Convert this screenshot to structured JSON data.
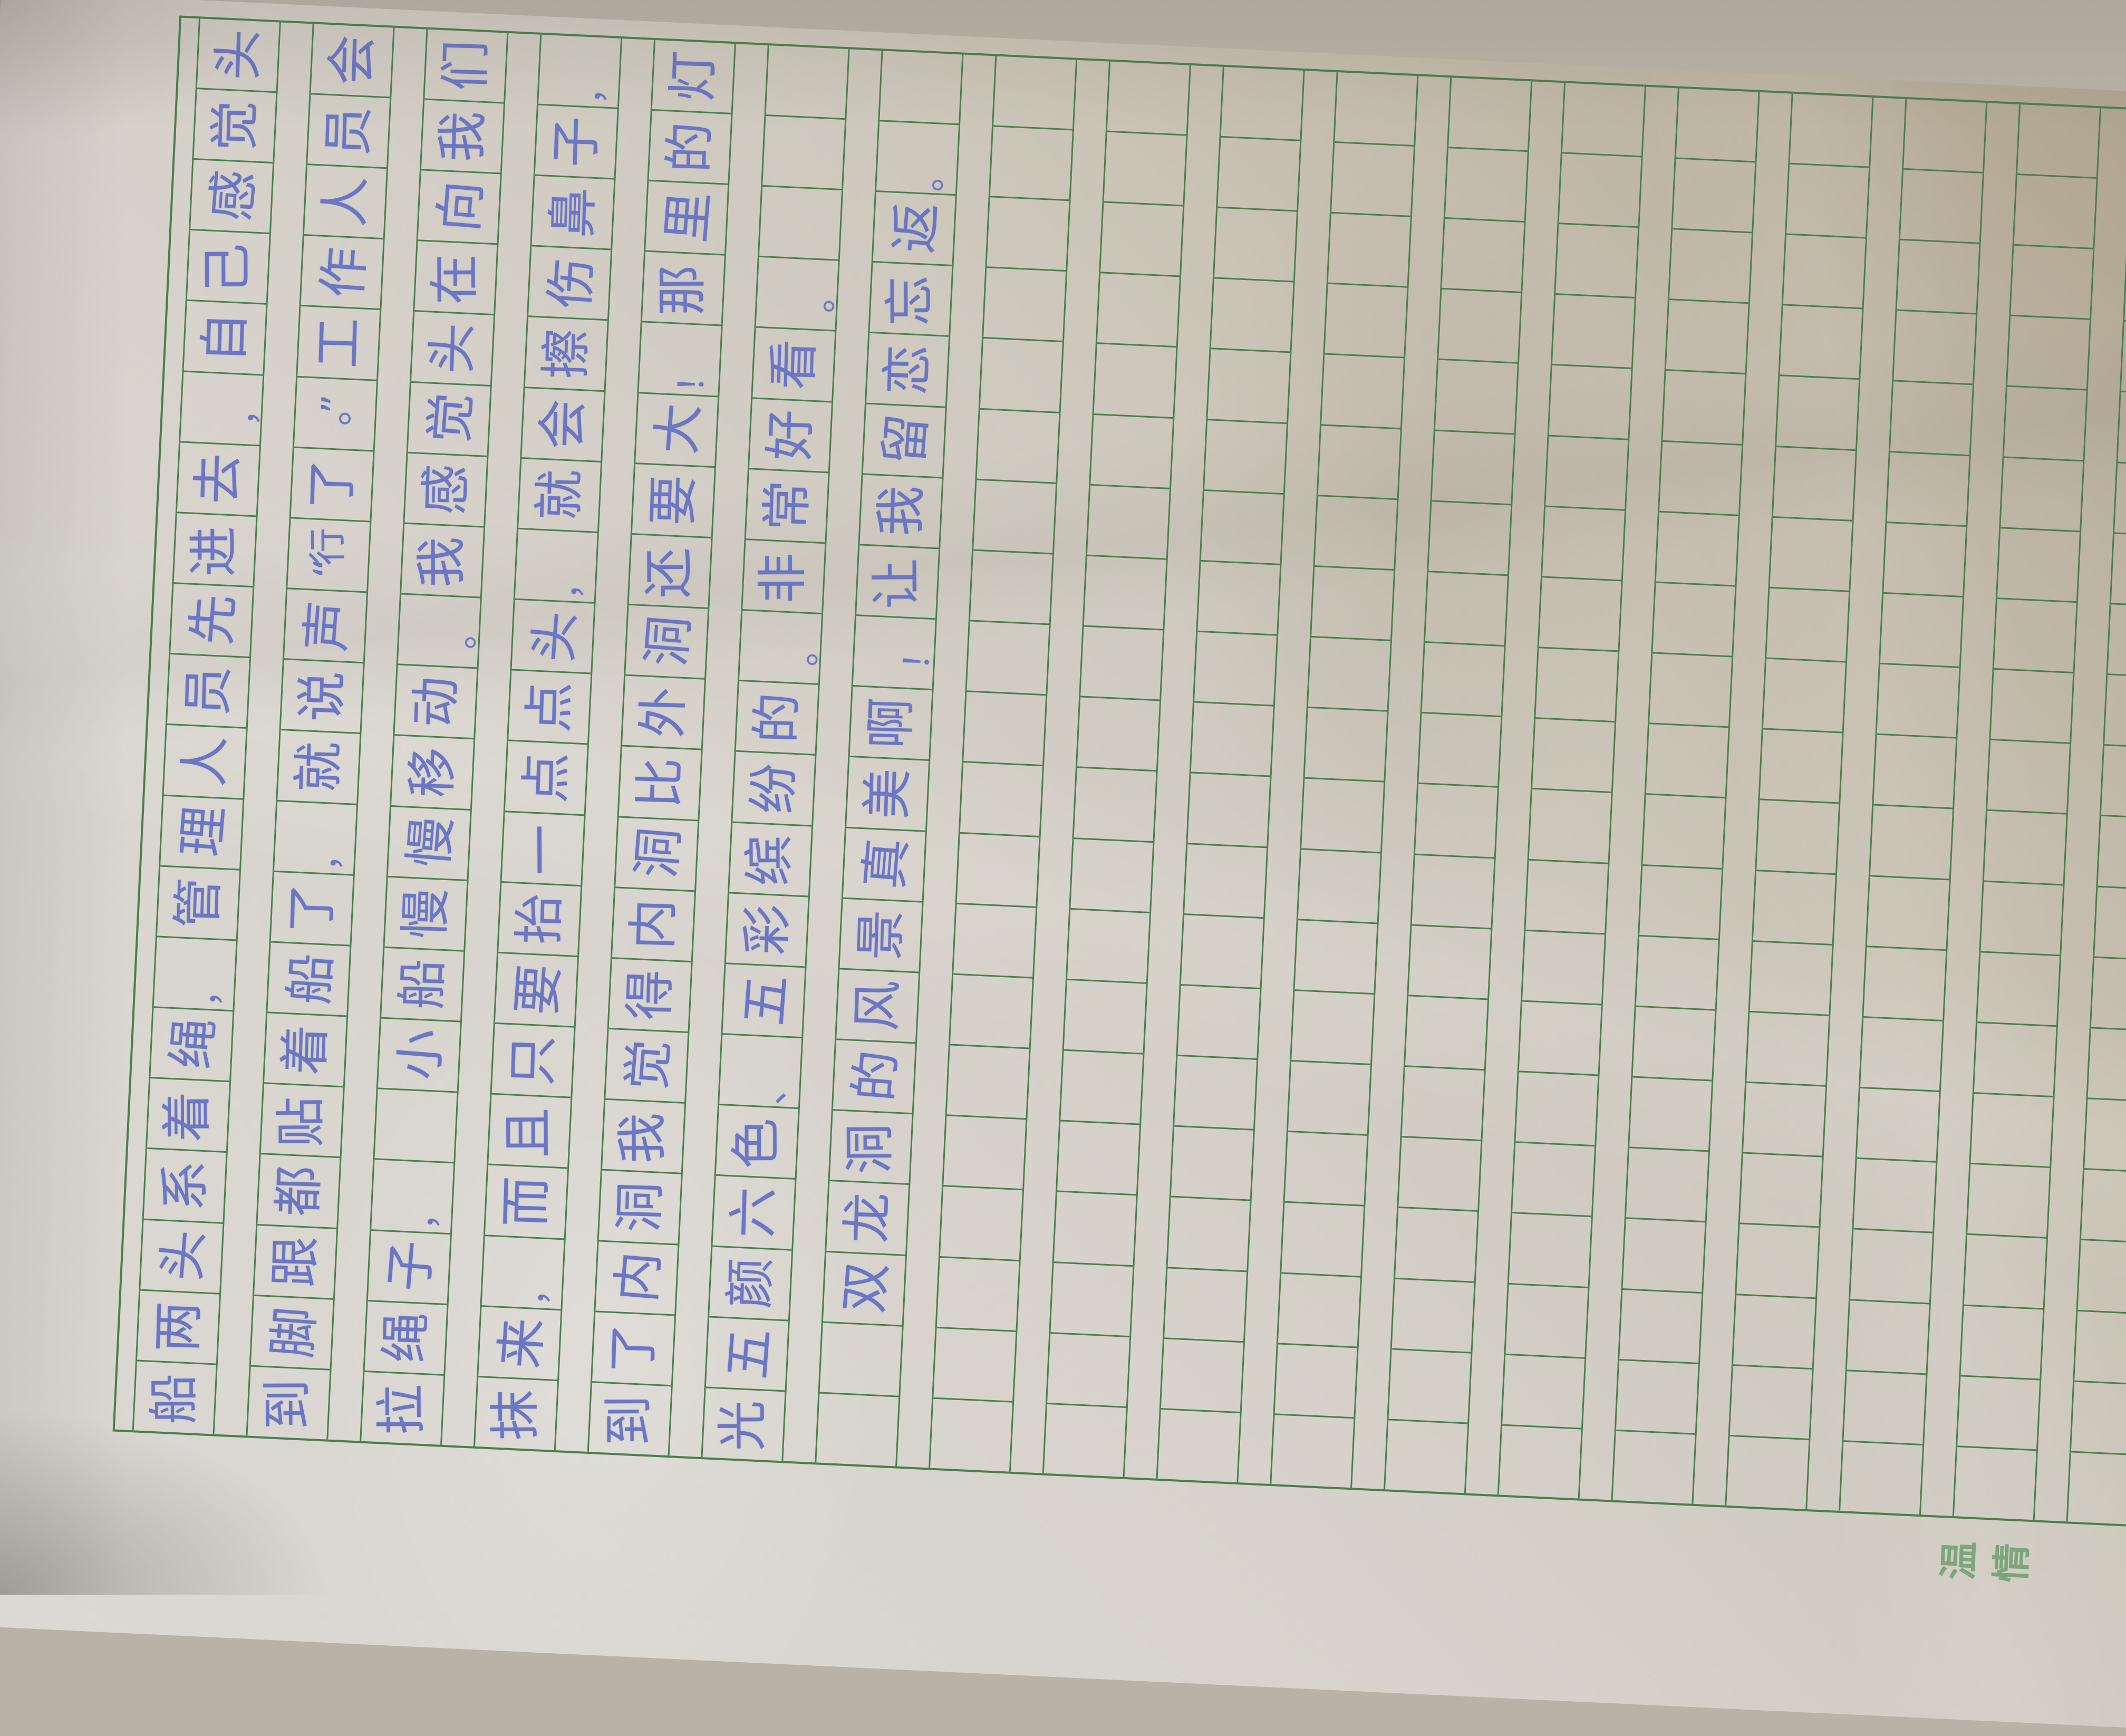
{
  "paper": {
    "kind_label": "composition-grid-paper",
    "grid": {
      "columns": 20,
      "visible_row_strips": 19,
      "line_color": "#4a7e52"
    },
    "ink_color": "#6571c4",
    "handwriting_rows": [
      [
        "船",
        "两",
        "头",
        "系",
        "着",
        "绳",
        "，",
        "管",
        "理",
        "人",
        "员",
        "先",
        "进",
        "去",
        "，",
        "自",
        "己",
        "感",
        "觉",
        "头"
      ],
      [
        "到",
        "脚",
        "跟",
        "都",
        "贴",
        "着",
        "船",
        "了",
        "，",
        "就",
        "说",
        "声",
        "“行",
        "了",
        "。”",
        "工",
        "作",
        "人",
        "员",
        "会"
      ],
      [
        "拉",
        "绳",
        "子",
        "，",
        "",
        "小",
        "船",
        "慢",
        "慢",
        "移",
        "动",
        "。",
        "我",
        "感",
        "觉",
        "头",
        "在",
        "向",
        "我",
        "们"
      ],
      [
        "抹",
        "来",
        "，",
        "而",
        "且",
        "只",
        "要",
        "抬",
        "一",
        "点",
        "点",
        "头",
        "，",
        "就",
        "会",
        "擦",
        "伤",
        "鼻",
        "子",
        "，"
      ],
      [
        "到",
        "了",
        "内",
        "洞",
        "我",
        "觉",
        "得",
        "内",
        "洞",
        "比",
        "外",
        "洞",
        "还",
        "要",
        "大",
        "！",
        "那",
        "里",
        "的",
        "灯"
      ],
      [
        "光",
        "五",
        "颜",
        "六",
        "色",
        "、",
        "五",
        "彩",
        "缤",
        "纷",
        "的",
        "。",
        "非",
        "常",
        "好",
        "看",
        "。",
        "",
        "",
        ""
      ],
      [
        "",
        "",
        "双",
        "龙",
        "洞",
        "的",
        "风",
        "景",
        "真",
        "美",
        "啊",
        "！",
        "让",
        "我",
        "留",
        "恋",
        "忘",
        "返",
        "。",
        ""
      ]
    ],
    "margin_note": {
      "text": "温情",
      "color": "#689b6a"
    }
  }
}
